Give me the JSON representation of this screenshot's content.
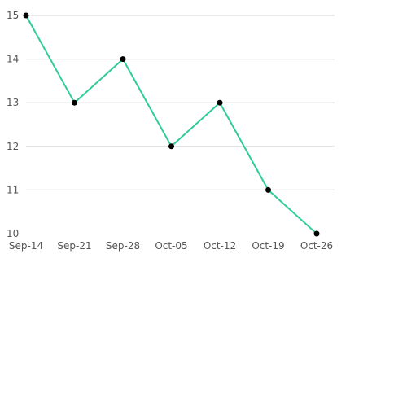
{
  "chart_data": {
    "type": "line",
    "x": [
      "Sep-14",
      "Sep-21",
      "Sep-28",
      "Oct-05",
      "Oct-12",
      "Oct-19",
      "Oct-26"
    ],
    "series": [
      {
        "values": [
          15,
          13,
          14,
          12,
          13,
          11,
          10
        ]
      }
    ],
    "yticks": [
      "10",
      "11",
      "12",
      "13",
      "14",
      "15"
    ],
    "ylim": [
      10,
      15
    ],
    "grid": true,
    "title": "",
    "xlabel": "",
    "ylabel": ""
  },
  "colors": {
    "line": "#2ecc9a",
    "marker": "#000000",
    "grid": "#dcdcdc",
    "tick_text": "#555555"
  }
}
